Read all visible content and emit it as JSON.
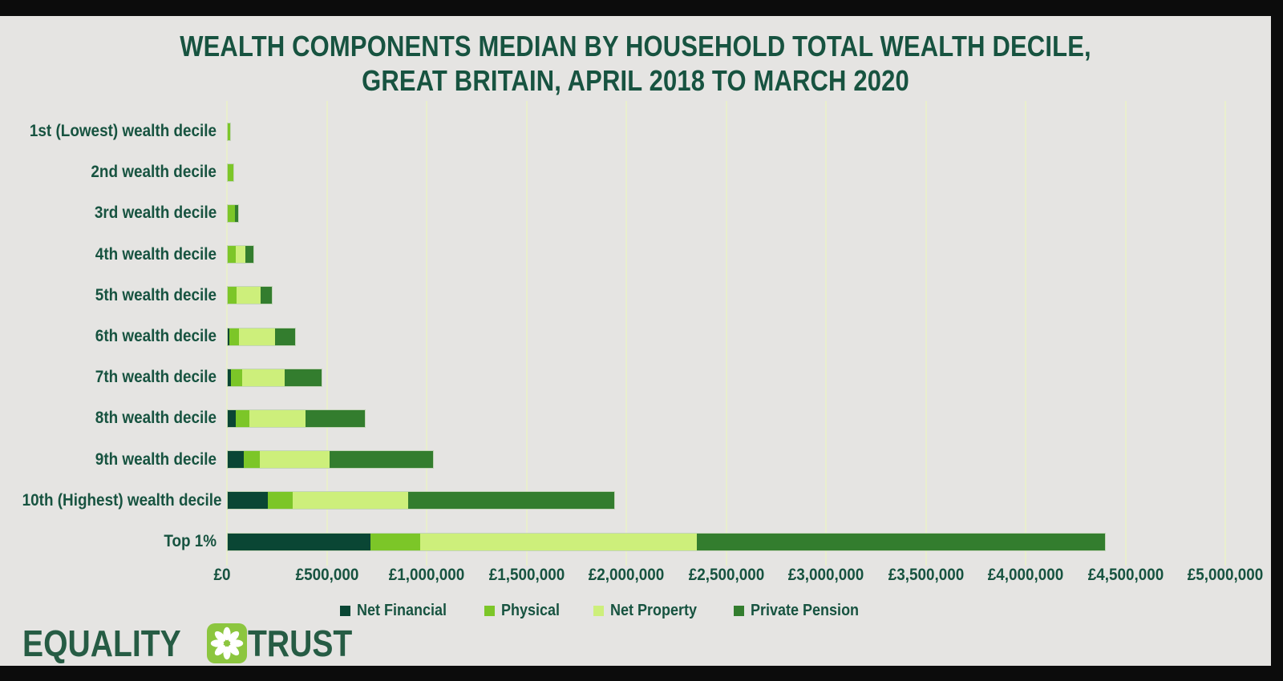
{
  "header": {
    "title_line1": "WEALTH COMPONENTS MEDIAN BY HOUSEHOLD TOTAL WEALTH DECILE,",
    "title_line2": "GREAT BRITAIN, APRIL 2018 TO MARCH 2020"
  },
  "colors": {
    "background_frame": "#0c0c0c",
    "card_background": "#e5e4e2",
    "text_green": "#175340",
    "gridline": "#e9efcd",
    "net_financial": "#0a4634",
    "physical": "#7cc628",
    "net_property": "#cdef7b",
    "private_pension": "#337d2e",
    "logo_square": "#8cc63f",
    "logo_text": "#265c44"
  },
  "chart_data": {
    "type": "bar",
    "orientation": "horizontal",
    "stacked": true,
    "title": "WEALTH COMPONENTS MEDIAN BY HOUSEHOLD TOTAL WEALTH DECILE, GREAT BRITAIN, APRIL 2018 TO MARCH 2020",
    "categories": [
      "1st (Lowest) wealth decile",
      "2nd wealth decile",
      "3rd wealth decile",
      "4th wealth decile",
      "5th wealth decile",
      "6th wealth decile",
      "7th wealth decile",
      "8th wealth decile",
      "9th wealth decile",
      "10th (Highest) wealth decile",
      "Top 1%"
    ],
    "series": [
      {
        "name": "Net Financial",
        "color": "#0a4634",
        "values": [
          0,
          0,
          0,
          0,
          0,
          8000,
          16000,
          40000,
          80000,
          200000,
          715000
        ]
      },
      {
        "name": "Physical",
        "color": "#7cc628",
        "values": [
          12000,
          30000,
          37000,
          40000,
          46000,
          50000,
          56000,
          70000,
          80000,
          125000,
          250000
        ]
      },
      {
        "name": "Net Property",
        "color": "#cdef7b",
        "values": [
          0,
          0,
          0,
          50000,
          118000,
          178000,
          212000,
          280000,
          352000,
          580000,
          1385000
        ]
      },
      {
        "name": "Private Pension",
        "color": "#337d2e",
        "values": [
          0,
          0,
          16000,
          37000,
          56000,
          103000,
          186000,
          295000,
          516000,
          1030000,
          2045000
        ]
      }
    ],
    "x_ticks": [
      "£0",
      "£500,000",
      "£1,000,000",
      "£1,500,000",
      "£2,000,000",
      "£2,500,000",
      "£3,000,000",
      "£3,500,000",
      "£4,000,000",
      "£4,500,000",
      "£5,000,000"
    ],
    "xlabel": "",
    "ylabel": "",
    "xlim": [
      0,
      5000000
    ],
    "gridlines": true,
    "legend_position": "bottom-center"
  },
  "footer": {
    "logo_word1": "EQUALITY",
    "logo_word2": "TRUST",
    "logo_icon": "flower-icon"
  }
}
